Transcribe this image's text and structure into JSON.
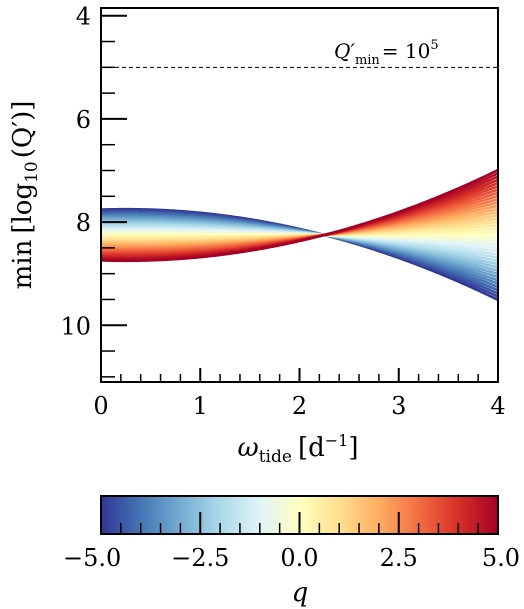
{
  "chart_data": {
    "type": "line",
    "xlabel": "ω",
    "xlabel_sub": "tide",
    "xlabel_unit": "[d",
    "xlabel_unit_exp": "−1",
    "xlabel_unit_end": "]",
    "ylabel_min": "min",
    "ylabel_log": "[log",
    "ylabel_log_sub": "10",
    "ylabel_q": "(Q′)]",
    "xlim": [
      0,
      4
    ],
    "ylim": [
      11.1,
      3.85
    ],
    "y_inverted": true,
    "x_ticks": [
      "0",
      "1",
      "2",
      "3",
      "4"
    ],
    "y_ticks": [
      "4",
      "6",
      "8",
      "10"
    ],
    "grid": false,
    "annotation": {
      "text_q": "Q′",
      "text_sub": "min",
      "text_eq": "= 10",
      "text_exp": "5",
      "floor_value": 5
    },
    "pivot": {
      "x": 2.25,
      "y": 8.25
    },
    "series_model": {
      "count": 41,
      "q_min": -5.0,
      "q_max": 5.0,
      "slope_coefficient_per_q": -0.1,
      "curvature_coefficient_per_q": -0.025,
      "floor": 5
    },
    "colorbar": {
      "label": "q",
      "range": [
        -5.0,
        5.0
      ],
      "ticks": [
        "−5.0",
        "−2.5",
        "0.0",
        "2.5",
        "5.0"
      ],
      "colormap": "RdYlBu_r",
      "stops": [
        "#313695",
        "#4575b4",
        "#74add1",
        "#abd9e9",
        "#e0f3f8",
        "#ffffbf",
        "#fee090",
        "#fdae61",
        "#f46d43",
        "#d73027",
        "#a50026"
      ]
    }
  }
}
